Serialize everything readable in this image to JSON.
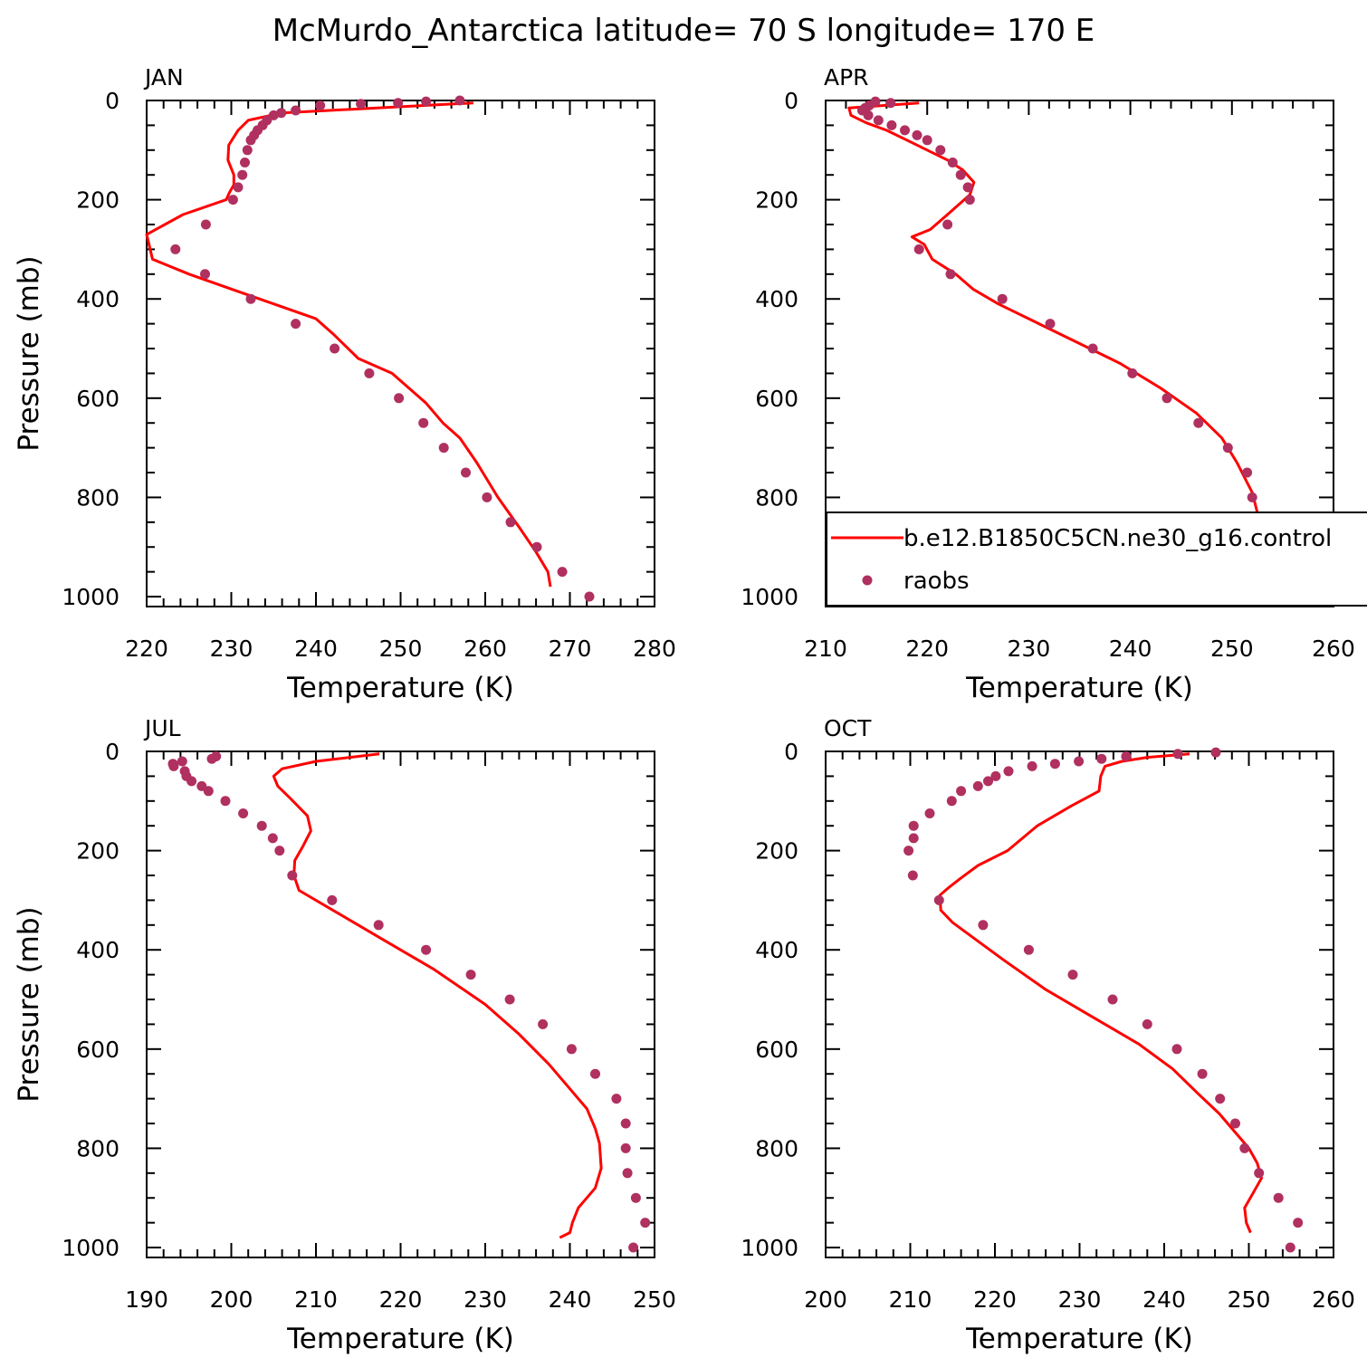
{
  "title": "McMurdo_Antarctica  latitude= 70 S longitude= 170 E",
  "colors": {
    "model": "#ff0000",
    "obs": "#b03060"
  },
  "legend": {
    "model_label": "b.e12.B1850C5CN.ne30_g16.control",
    "obs_label": "raobs"
  },
  "chart_data": [
    {
      "type": "line",
      "panel": "JAN",
      "xlabel": "Temperature (K)",
      "ylabel": "Pressure (mb)",
      "xlim": [
        220,
        280
      ],
      "ylim": [
        1020,
        0
      ],
      "xticks": [
        220,
        230,
        240,
        250,
        260,
        270,
        280
      ],
      "yticks": [
        0,
        200,
        400,
        600,
        800,
        1000
      ],
      "series": [
        {
          "name": "b.e12.B1850C5CN.ne30_g16.control",
          "style": "line",
          "x": [
            258.6,
            236.0,
            232.0,
            230.8,
            229.7,
            229.6,
            230.3,
            230.3,
            229.8,
            229.4,
            224.3,
            220.0,
            220.7,
            225.0,
            230.0,
            235.0,
            240.0,
            242.0,
            245.0,
            249.0,
            251.0,
            253.0,
            255.0,
            257.0,
            259.0,
            261.5,
            264.0,
            266.0,
            267.4,
            267.7
          ],
          "y": [
            5,
            25,
            40,
            60,
            90,
            120,
            150,
            170,
            185,
            200,
            230,
            270,
            320,
            350,
            380,
            410,
            440,
            470,
            520,
            550,
            580,
            610,
            650,
            680,
            730,
            800,
            860,
            910,
            950,
            980
          ]
        },
        {
          "name": "raobs",
          "style": "markers",
          "x": [
            257.0,
            253.0,
            249.7,
            245.3,
            240.5,
            237.6,
            235.9,
            235.0,
            234.2,
            233.7,
            233.1,
            232.7,
            232.3,
            231.9,
            231.6,
            231.3,
            230.8,
            230.2,
            227.0,
            223.4,
            226.9,
            232.3,
            237.6,
            242.2,
            246.3,
            249.8,
            252.7,
            255.1,
            257.7,
            260.2,
            263.0,
            266.1,
            269.1,
            272.3
          ],
          "y": [
            0,
            2,
            5,
            7,
            10,
            20,
            25,
            30,
            40,
            50,
            60,
            70,
            80,
            100,
            125,
            150,
            175,
            200,
            250,
            300,
            350,
            400,
            450,
            500,
            550,
            600,
            650,
            700,
            750,
            800,
            850,
            900,
            950,
            1000
          ]
        }
      ]
    },
    {
      "type": "line",
      "panel": "APR",
      "xlabel": "Temperature (K)",
      "ylabel": "",
      "xlim": [
        210,
        260
      ],
      "ylim": [
        1020,
        0
      ],
      "xticks": [
        210,
        220,
        230,
        240,
        250,
        260
      ],
      "yticks": [
        0,
        200,
        400,
        600,
        800,
        1000
      ],
      "series": [
        {
          "name": "b.e12.B1850C5CN.ne30_g16.control",
          "style": "line",
          "x": [
            219.2,
            212.3,
            212.5,
            214.0,
            216.0,
            218.0,
            220.0,
            222.0,
            223.5,
            224.6,
            224.2,
            222.0,
            220.3,
            218.5,
            219.7,
            220.5,
            222.8,
            224.5,
            227.0,
            231.0,
            235.0,
            239.0,
            243.0,
            246.5,
            249.0,
            250.5,
            252.0,
            252.5,
            252.7,
            252.6,
            249.0,
            248.0,
            247.8
          ],
          "y": [
            5,
            15,
            30,
            45,
            60,
            80,
            100,
            120,
            140,
            165,
            190,
            230,
            260,
            275,
            290,
            320,
            350,
            380,
            410,
            450,
            490,
            530,
            580,
            630,
            680,
            730,
            790,
            830,
            870,
            900,
            940,
            960,
            980
          ]
        },
        {
          "name": "raobs",
          "style": "markers",
          "x": [
            214.9,
            216.4,
            214.3,
            213.9,
            213.6,
            214.2,
            215.2,
            216.5,
            217.8,
            219.0,
            220.0,
            221.3,
            222.5,
            223.3,
            224.0,
            224.2,
            222.0,
            219.2,
            222.3,
            227.4,
            232.1,
            236.3,
            240.2,
            243.6,
            246.7,
            249.6,
            251.5,
            252.0,
            252.3,
            253.9,
            255.9,
            256.3
          ],
          "y": [
            2,
            5,
            10,
            15,
            20,
            30,
            40,
            50,
            60,
            70,
            80,
            100,
            125,
            150,
            175,
            200,
            250,
            300,
            350,
            400,
            450,
            500,
            550,
            600,
            650,
            700,
            750,
            800,
            850,
            900,
            950,
            1000
          ]
        }
      ]
    },
    {
      "type": "line",
      "panel": "JUL",
      "xlabel": "Temperature (K)",
      "ylabel": "Pressure (mb)",
      "xlim": [
        190,
        250
      ],
      "ylim": [
        1020,
        0
      ],
      "xticks": [
        190,
        200,
        210,
        220,
        230,
        240,
        250
      ],
      "yticks": [
        0,
        200,
        400,
        600,
        800,
        1000
      ],
      "series": [
        {
          "name": "b.e12.B1850C5CN.ne30_g16.control",
          "style": "line",
          "x": [
            217.5,
            210.0,
            206.0,
            205.0,
            205.5,
            207.0,
            209.0,
            209.4,
            208.5,
            207.5,
            207.4,
            208.0,
            212.0,
            218.0,
            224.0,
            230.0,
            234.0,
            237.5,
            240.0,
            242.0,
            243.0,
            243.5,
            243.7,
            243.0,
            241.0,
            240.3,
            240.0,
            238.8
          ],
          "y": [
            5,
            20,
            35,
            50,
            70,
            95,
            130,
            160,
            190,
            220,
            250,
            280,
            320,
            380,
            440,
            510,
            570,
            630,
            680,
            720,
            760,
            790,
            840,
            880,
            920,
            950,
            970,
            980
          ]
        },
        {
          "name": "raobs",
          "style": "markers",
          "x": [
            198.2,
            197.7,
            194.2,
            194.5,
            194.7,
            193.1,
            193.2,
            195.3,
            196.5,
            197.3,
            199.3,
            201.4,
            203.6,
            204.9,
            205.7,
            207.2,
            211.9,
            217.4,
            223.0,
            228.3,
            232.9,
            236.8,
            240.2,
            243.0,
            245.5,
            246.6,
            246.6,
            246.8,
            247.8,
            248.9,
            247.5
          ],
          "y": [
            10,
            15,
            20,
            40,
            50,
            25,
            30,
            60,
            70,
            80,
            100,
            125,
            150,
            175,
            200,
            250,
            300,
            350,
            400,
            450,
            500,
            550,
            600,
            650,
            700,
            750,
            800,
            850,
            900,
            950,
            1000
          ]
        }
      ]
    },
    {
      "type": "line",
      "panel": "OCT",
      "xlabel": "Temperature (K)",
      "ylabel": "",
      "xlim": [
        200,
        260
      ],
      "ylim": [
        1020,
        0
      ],
      "xticks": [
        200,
        210,
        220,
        230,
        240,
        250,
        260
      ],
      "yticks": [
        0,
        200,
        400,
        600,
        800,
        1000
      ],
      "series": [
        {
          "name": "b.e12.B1850C5CN.ne30_g16.control",
          "style": "line",
          "x": [
            243.0,
            238.0,
            235.0,
            233.0,
            232.5,
            232.3,
            229.0,
            225.0,
            221.5,
            218.0,
            216.0,
            214.5,
            213.5,
            213.6,
            215.0,
            217.0,
            221.0,
            226.0,
            232.0,
            237.0,
            241.0,
            244.0,
            246.5,
            248.5,
            250.0,
            251.0,
            251.5,
            250.5,
            249.5,
            249.7,
            250.2
          ],
          "y": [
            5,
            12,
            20,
            30,
            50,
            80,
            110,
            150,
            200,
            230,
            255,
            275,
            290,
            320,
            345,
            370,
            420,
            480,
            540,
            590,
            640,
            690,
            730,
            770,
            800,
            830,
            860,
            890,
            920,
            950,
            970
          ]
        },
        {
          "name": "raobs",
          "style": "markers",
          "x": [
            246.1,
            241.6,
            235.5,
            232.6,
            229.9,
            227.1,
            224.4,
            221.6,
            220.1,
            219.2,
            218.0,
            216.0,
            214.9,
            212.3,
            210.4,
            210.4,
            209.8,
            210.3,
            213.4,
            218.6,
            224.0,
            229.2,
            233.9,
            238.0,
            241.5,
            244.5,
            246.6,
            248.4,
            249.5,
            251.2,
            253.5,
            255.8,
            254.9
          ],
          "y": [
            2,
            5,
            10,
            15,
            20,
            25,
            30,
            40,
            50,
            60,
            70,
            80,
            100,
            125,
            150,
            175,
            200,
            250,
            300,
            350,
            400,
            450,
            500,
            550,
            600,
            650,
            700,
            750,
            800,
            850,
            900,
            950,
            1000
          ]
        }
      ]
    }
  ]
}
